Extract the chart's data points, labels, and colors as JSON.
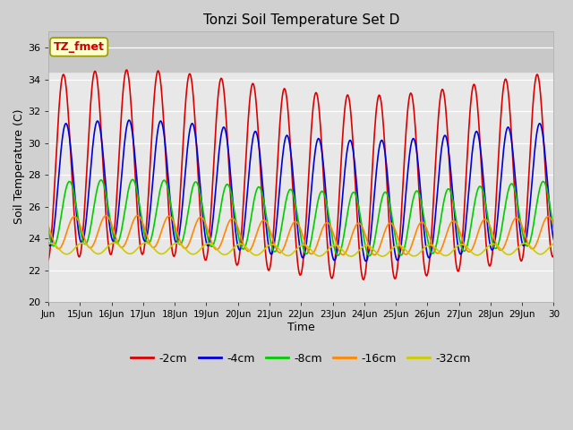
{
  "title": "Tonzi Soil Temperature Set D",
  "xlabel": "Time",
  "ylabel": "Soil Temperature (C)",
  "ylim": [
    20,
    37
  ],
  "yticks": [
    20,
    22,
    24,
    26,
    28,
    30,
    32,
    34,
    36
  ],
  "series_colors": {
    "-2cm": "#dd0000",
    "-4cm": "#0000dd",
    "-8cm": "#00cc00",
    "-16cm": "#ff8800",
    "-32cm": "#cccc00"
  },
  "annotation": {
    "text": "TZ_fmet",
    "color": "#cc0000",
    "box_facecolor": "#ffffcc",
    "box_edgecolor": "#999900"
  },
  "xtick_labels": [
    "Jun",
    "15Jun",
    "16Jun",
    "17Jun",
    "18Jun",
    "19Jun",
    "20Jun",
    "21Jun",
    "22Jun",
    "23Jun",
    "24Jun",
    "25Jun",
    "26Jun",
    "27Jun",
    "28Jun",
    "29Jun",
    "30"
  ],
  "fig_facecolor": "#d0d0d0",
  "ax_facecolor": "#e8e8e8",
  "upper_band_color": "#d0d0d0",
  "grid_color": "#ffffff",
  "lw": 1.2,
  "n_days": 16,
  "spd": 48
}
